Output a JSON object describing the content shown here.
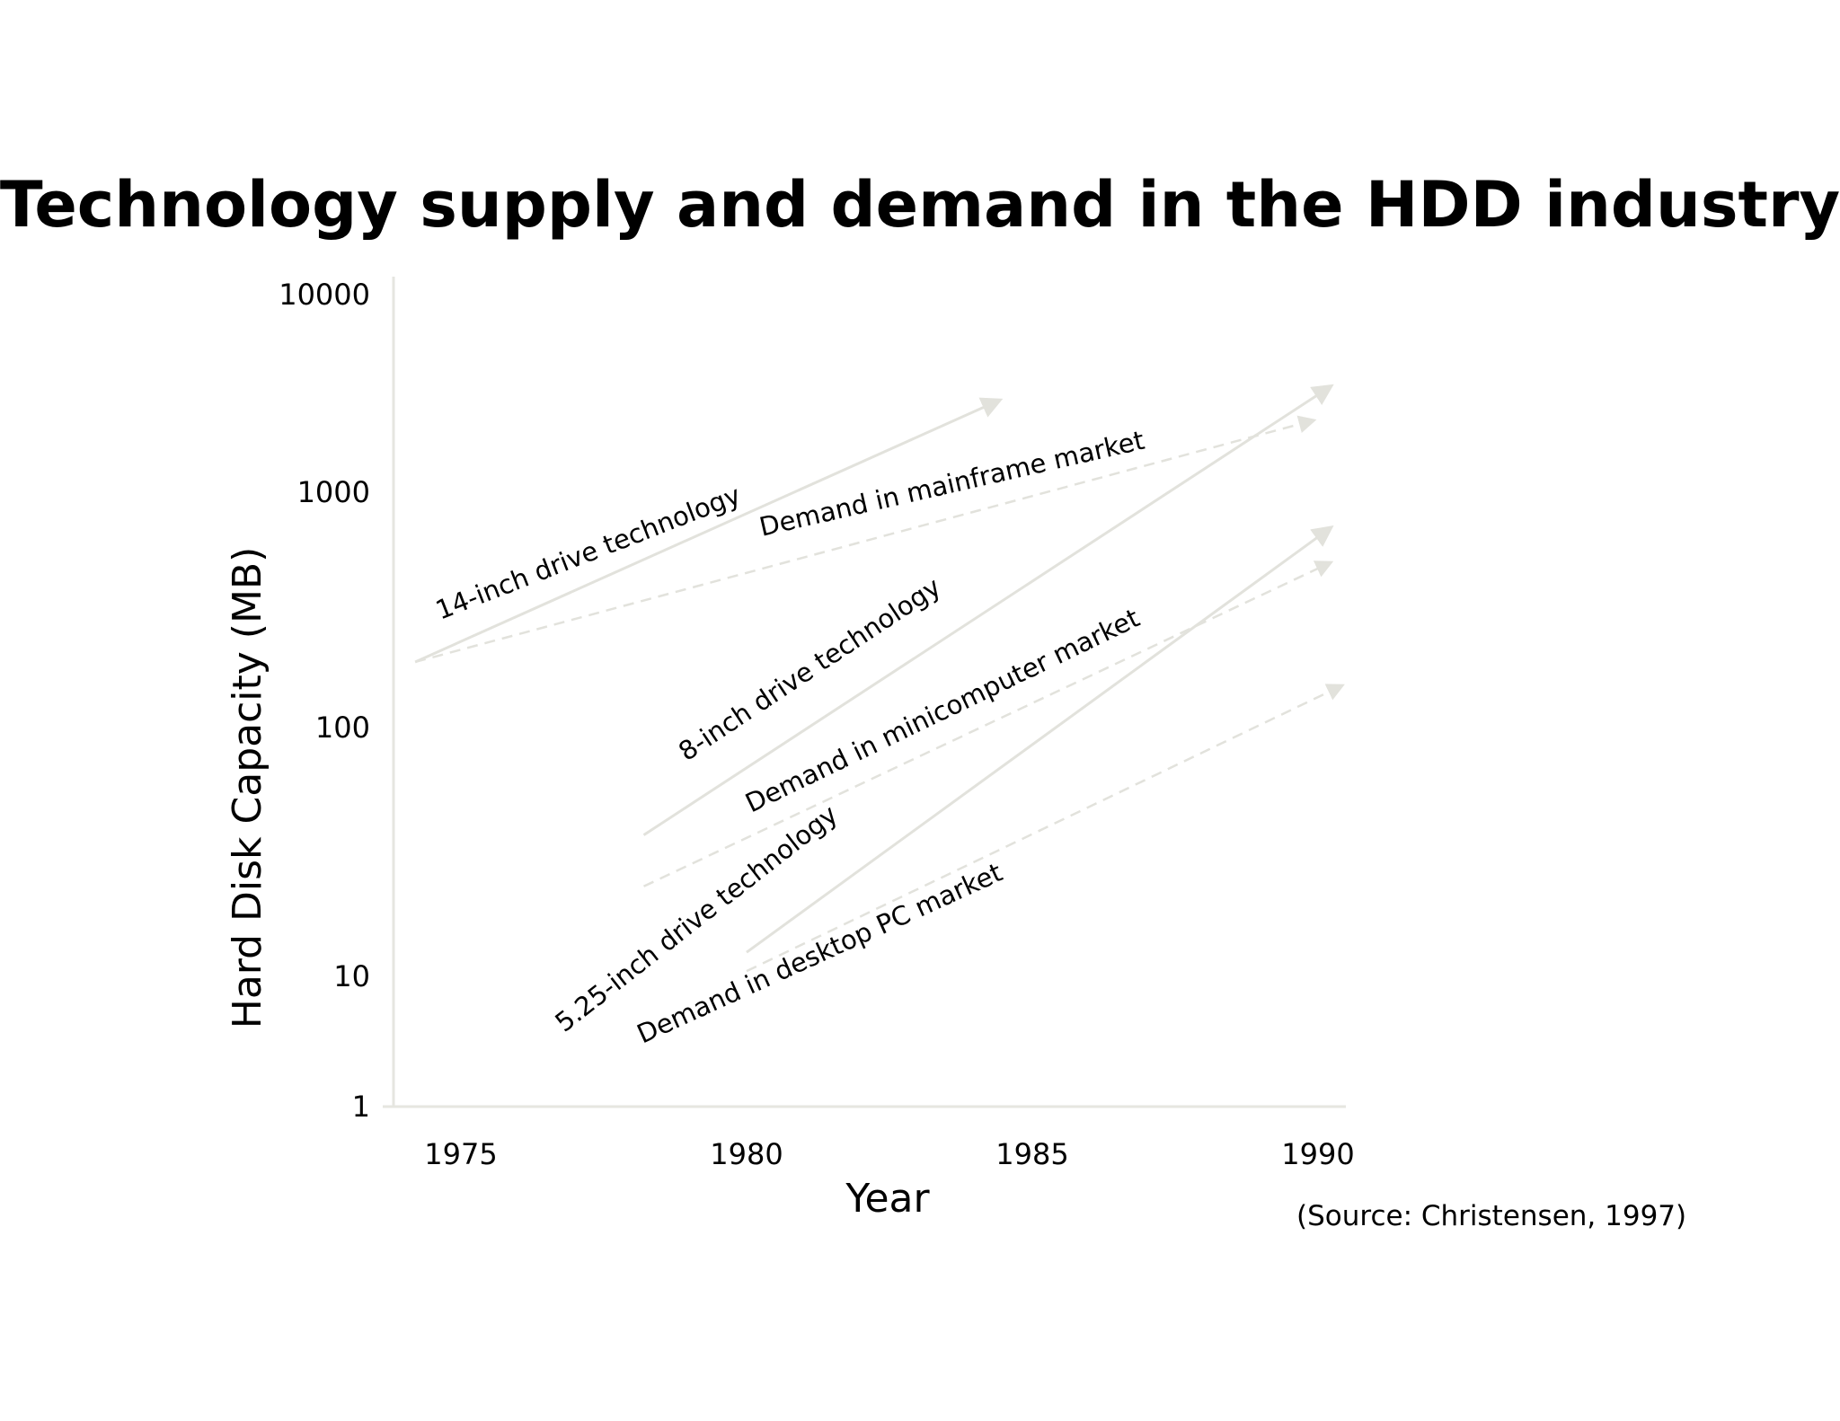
{
  "chart_data": {
    "type": "line",
    "title": "Technology supply and demand in the HDD industry",
    "xlabel": "Year",
    "ylabel": "Hard Disk Capacity (MB)",
    "source_note": "(Source: Christensen, 1997)",
    "x_ticks": [
      "1975",
      "1980",
      "1985",
      "1990"
    ],
    "y_ticks": [
      "1",
      "10",
      "100",
      "1000",
      "10000"
    ],
    "xlim": [
      1973.8,
      1990.4
    ],
    "y_scale": "log",
    "grid": false,
    "colors": {
      "line": "#e2e2dc",
      "axis": "#e6e6e0"
    },
    "series": [
      {
        "name": "14-inch drive technology",
        "style": "solid",
        "arrow": true,
        "x": [
          1974.2,
          1984.4
        ],
        "y": [
          190,
          2900
        ]
      },
      {
        "name": "Demand in mainframe market",
        "style": "dashed",
        "arrow": true,
        "x": [
          1974.2,
          1989.9
        ],
        "y": [
          190,
          2300
        ]
      },
      {
        "name": "8-inch drive technology",
        "style": "solid",
        "arrow": true,
        "x": [
          1978.2,
          1990.2
        ],
        "y": [
          37,
          3400
        ]
      },
      {
        "name": "Demand in minicomputer market",
        "style": "dashed",
        "arrow": true,
        "x": [
          1978.2,
          1990.2
        ],
        "y": [
          23,
          500
        ]
      },
      {
        "name": "5.25-inch drive technology",
        "style": "solid",
        "arrow": true,
        "x": [
          1980.0,
          1990.2
        ],
        "y": [
          12.5,
          700
        ]
      },
      {
        "name": "Demand in desktop PC market",
        "style": "dashed",
        "arrow": true,
        "x": [
          1980.0,
          1990.4
        ],
        "y": [
          10.5,
          150
        ]
      }
    ]
  }
}
